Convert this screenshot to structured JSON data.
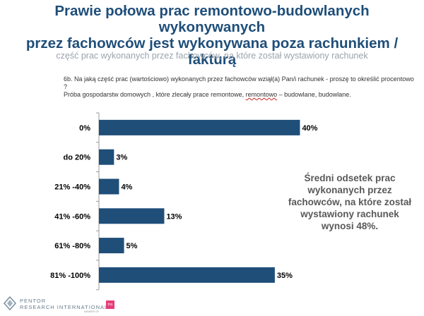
{
  "header": {
    "title_line1": "Prawie połowa prac remontowo-budowlanych wykonywanych",
    "title_line2": "przez fachowców jest wykonywana poza rachunkiem / fakturą",
    "subtitle": "część prac wykonanych przez fachowców, na które został wystawiony rachunek"
  },
  "question": {
    "line1": "6b. Na jaką część prac (wartościowo)  wykonanych przez fachowców wziął(a)  Pan/i  rachunek  - proszę to określić procentowo ?",
    "line2_pre": "Próba gospodarstw domowych , które zlecały prace remontowe, ",
    "line2_underlined": "remontowo",
    "line2_post": " – budowlane, budowlane."
  },
  "callout": {
    "line1": "Średni odsetek prac",
    "line2": "wykonanych przez",
    "line3": "fachowców, na które został",
    "line4": "wystawiony rachunek",
    "line5": "wynosi 48%."
  },
  "logo": {
    "line1": "PENTOR",
    "line2": "RESEARCH INTERNATIONAL",
    "member": "MEMBER OF",
    "badge": "tns"
  },
  "colors": {
    "bar": "#1f4e79",
    "title": "#1f4e79",
    "subtitle": "#9aa3ad",
    "axis": "#9a9a9a"
  },
  "chart_data": {
    "type": "bar",
    "orientation": "horizontal",
    "categories": [
      "0%",
      "do 20%",
      "21% -40%",
      "41% -60%",
      "61% -80%",
      "81% -100%"
    ],
    "values": [
      40,
      3,
      4,
      13,
      5,
      35
    ],
    "value_labels": [
      "40%",
      "3%",
      "4%",
      "13%",
      "5%",
      "35%"
    ],
    "xlim": [
      0,
      45
    ],
    "grid": false,
    "legend": "none"
  }
}
